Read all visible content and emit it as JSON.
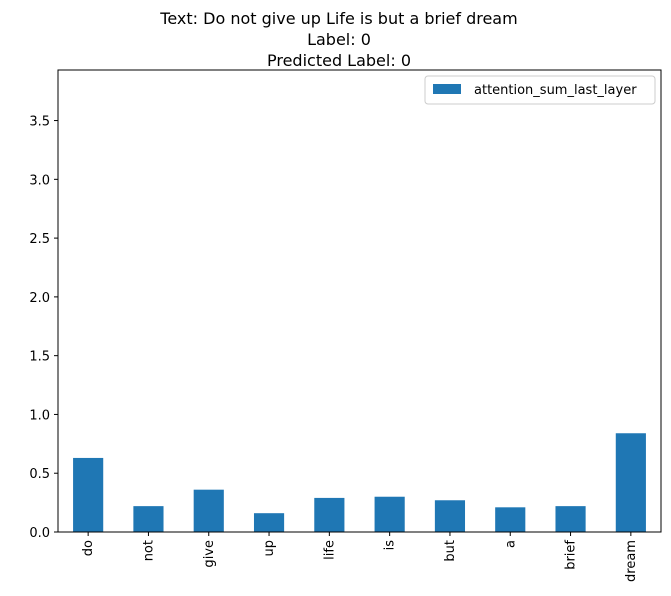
{
  "chart_data": {
    "type": "bar",
    "title_lines": [
      "Text: Do not give up Life is but a brief dream",
      "Label: 0",
      "Predicted Label: 0"
    ],
    "xlabel": "",
    "ylabel": "",
    "categories": [
      "do",
      "not",
      "give",
      "up",
      "life",
      "is",
      "but",
      "a",
      "brief",
      "dream"
    ],
    "series": [
      {
        "name": "attention_sum_last_layer",
        "values": [
          0.63,
          0.22,
          0.36,
          0.16,
          0.29,
          0.3,
          0.27,
          0.21,
          0.22,
          0.84
        ],
        "color": "#1f77b4"
      }
    ],
    "ylim": [
      0,
      3.93
    ],
    "yticks": [
      "0.0",
      "0.5",
      "1.0",
      "1.5",
      "2.0",
      "2.5",
      "3.0",
      "3.5"
    ],
    "grid": false,
    "legend_position": "top-right"
  }
}
